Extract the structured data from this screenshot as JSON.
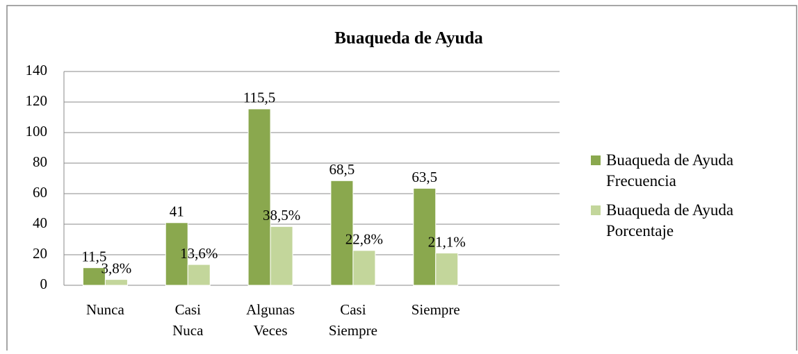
{
  "chart_data": {
    "type": "bar",
    "title": "Buaqueda de Ayuda",
    "categories": [
      "Nunca",
      "Casi Nuca",
      "Algunas Veces",
      "Casi Siempre",
      "Siempre"
    ],
    "series": [
      {
        "name": "Buaqueda de Ayuda Frecuencia",
        "color": "#8aa84e",
        "values": [
          11.5,
          41,
          115.5,
          68.5,
          63.5
        ],
        "value_labels": [
          "11,5",
          "41",
          "115,5",
          "68,5",
          "63,5"
        ]
      },
      {
        "name": "Buaqueda de Ayuda Porcentaje",
        "color": "#c3d69b",
        "values": [
          3.8,
          13.6,
          38.5,
          22.8,
          21.1
        ],
        "value_labels": [
          "3,8%",
          "13,6%",
          "38,5%",
          "22,8%",
          "21,1%"
        ]
      }
    ],
    "ylim": [
      0,
      140
    ],
    "yticks": [
      0,
      20,
      40,
      60,
      80,
      100,
      120,
      140
    ],
    "grid": true,
    "legend": "right"
  }
}
